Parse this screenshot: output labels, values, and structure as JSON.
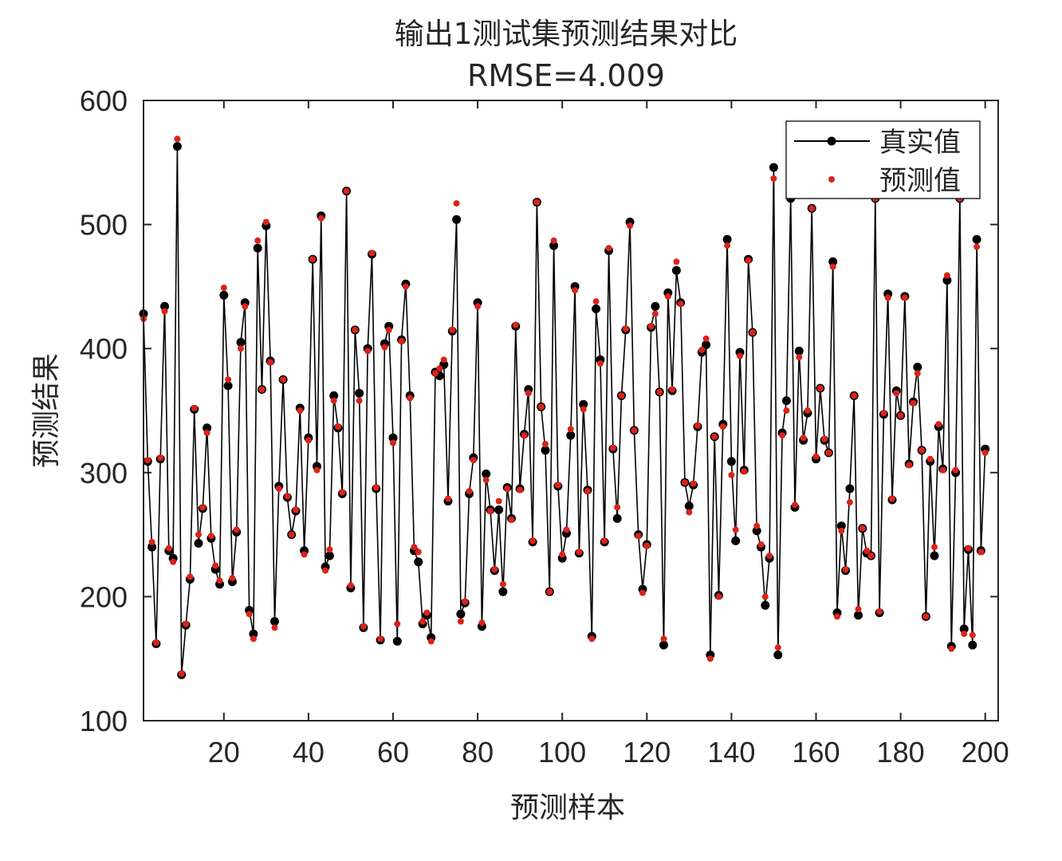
{
  "chart_data": {
    "type": "line",
    "title": "输出1测试集预测结果对比",
    "subtitle": "RMSE=4.009",
    "xlabel": "预测样本",
    "ylabel": "预测结果",
    "xlim": [
      1,
      201
    ],
    "ylim": [
      100,
      600
    ],
    "xticks": [
      20,
      40,
      60,
      80,
      100,
      120,
      140,
      160,
      180,
      200
    ],
    "yticks": [
      100,
      200,
      300,
      400,
      500,
      600
    ],
    "grid": false,
    "legend_position": "top-right",
    "series": [
      {
        "name": "真实值",
        "style": "line-with-markers",
        "color": "#000000",
        "values": [
          428,
          309,
          240,
          162,
          311,
          434,
          237,
          231,
          563,
          137,
          177,
          214,
          351,
          243,
          271,
          336,
          247,
          222,
          210,
          443,
          370,
          212,
          252,
          405,
          437,
          189,
          170,
          481,
          367,
          499,
          390,
          180,
          289,
          375,
          280,
          250,
          269,
          352,
          237,
          328,
          472,
          305,
          507,
          224,
          233,
          362,
          336,
          283,
          527,
          207,
          415,
          364,
          175,
          400,
          476,
          287,
          165,
          404,
          418,
          328,
          164,
          407,
          452,
          362,
          237,
          228,
          178,
          185,
          167,
          381,
          378,
          387,
          277,
          414,
          504,
          186,
          195,
          283,
          312,
          437,
          176,
          299,
          270,
          221,
          270,
          204,
          288,
          263,
          418,
          287,
          331,
          367,
          244,
          518,
          353,
          318,
          204,
          483,
          289,
          231,
          251,
          330,
          450,
          235,
          355,
          286,
          168,
          432,
          391,
          244,
          479,
          319,
          263,
          362,
          415,
          502,
          334,
          250,
          206,
          242,
          417,
          434,
          365,
          161,
          445,
          366,
          463,
          437,
          292,
          273,
          290,
          337,
          397,
          403,
          153,
          329,
          201,
          339,
          488,
          309,
          245,
          397,
          302,
          472,
          413,
          253,
          240,
          193,
          231,
          546,
          153,
          332,
          358,
          521,
          272,
          398,
          326,
          348,
          513,
          311,
          368,
          326,
          316,
          470,
          187,
          257,
          221,
          287,
          362,
          185,
          255,
          235,
          233,
          521,
          187,
          347,
          444,
          278,
          366,
          346,
          442,
          307,
          357,
          385,
          318,
          184,
          309,
          233,
          337,
          303,
          455,
          160,
          300,
          521,
          174,
          238,
          161,
          488,
          237,
          319
        ]
      },
      {
        "name": "预测值",
        "style": "markers",
        "color": "#d9231c",
        "values": [
          424,
          310,
          244,
          163,
          312,
          430,
          239,
          228,
          569,
          138,
          178,
          216,
          352,
          250,
          272,
          332,
          249,
          225,
          213,
          449,
          375,
          215,
          254,
          400,
          434,
          186,
          166,
          487,
          367,
          502,
          389,
          175,
          287,
          375,
          281,
          250,
          270,
          350,
          234,
          326,
          472,
          302,
          505,
          221,
          238,
          358,
          337,
          284,
          527,
          209,
          415,
          358,
          176,
          398,
          477,
          288,
          166,
          401,
          415,
          324,
          178,
          406,
          450,
          360,
          240,
          236,
          180,
          187,
          164,
          380,
          384,
          391,
          279,
          415,
          517,
          180,
          196,
          285,
          310,
          434,
          179,
          294,
          269,
          222,
          277,
          210,
          287,
          262,
          419,
          286,
          330,
          364,
          245,
          518,
          353,
          323,
          204,
          487,
          290,
          234,
          254,
          335,
          447,
          236,
          351,
          285,
          166,
          438,
          388,
          245,
          481,
          320,
          272,
          362,
          416,
          499,
          334,
          249,
          203,
          241,
          418,
          428,
          365,
          166,
          442,
          367,
          470,
          436,
          292,
          268,
          291,
          338,
          399,
          408,
          150,
          329,
          200,
          337,
          483,
          298,
          254,
          394,
          301,
          471,
          413,
          257,
          242,
          200,
          233,
          537,
          159,
          330,
          350,
          523,
          274,
          393,
          328,
          350,
          513,
          313,
          368,
          327,
          316,
          466,
          184,
          253,
          222,
          276,
          362,
          190,
          255,
          237,
          233,
          521,
          188,
          348,
          441,
          279,
          364,
          346,
          441,
          306,
          356,
          380,
          318,
          184,
          311,
          240,
          339,
          302,
          459,
          158,
          302,
          521,
          170,
          239,
          169,
          482,
          236,
          316
        ]
      }
    ]
  }
}
